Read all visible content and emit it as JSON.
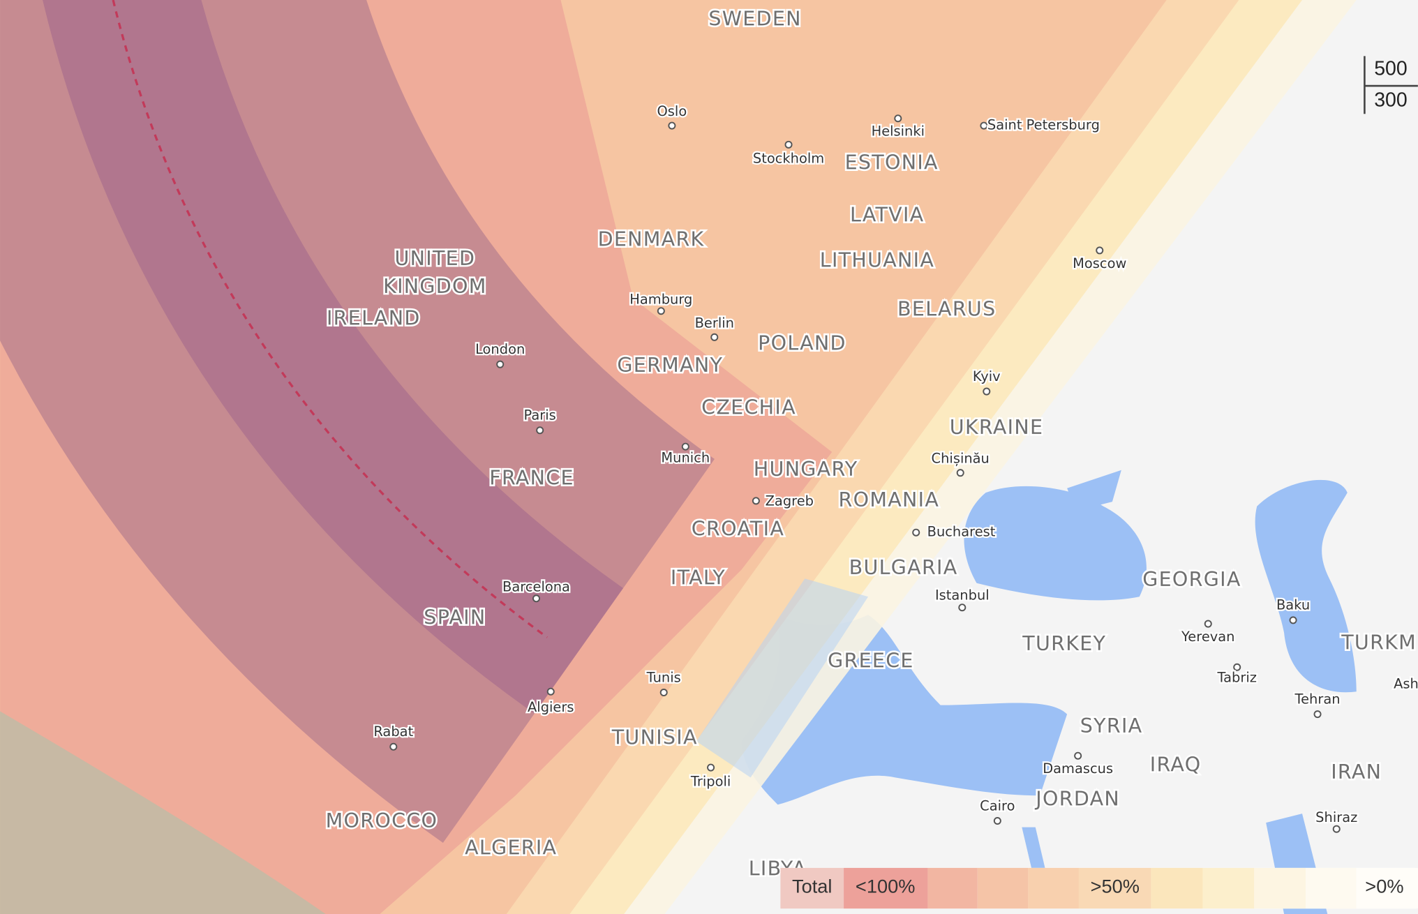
{
  "map": {
    "countries": [
      "SWEDEN",
      "UNITED",
      "KINGDOM",
      "IRELAND",
      "DENMARK",
      "ESTONIA",
      "LATVIA",
      "LITHUANIA",
      "BELARUS",
      "POLAND",
      "GERMANY",
      "CZECHIA",
      "UKRAINE",
      "HUNGARY",
      "ROMANIA",
      "FRANCE",
      "CROATIA",
      "ITALY",
      "BULGARIA",
      "GEORGIA",
      "SPAIN",
      "TURKEY",
      "GREECE",
      "TURKM",
      "TUNISIA",
      "SYRIA",
      "IRAQ",
      "IRAN",
      "JORDAN",
      "MOROCCO",
      "ALGERIA",
      "LIBYA"
    ],
    "cities": [
      "Oslo",
      "Helsinki",
      "Saint Petersburg",
      "Stockholm",
      "Moscow",
      "Hamburg",
      "Berlin",
      "London",
      "Kyiv",
      "Paris",
      "Munich",
      "Chișinău",
      "Zagreb",
      "Bucharest",
      "Barcelona",
      "Istanbul",
      "Baku",
      "Yerevan",
      "Tabriz",
      "Tunis",
      "Algiers",
      "Tehran",
      "Rabat",
      "Damascus",
      "Tripoli",
      "Cairo",
      "Shiraz",
      "Ash"
    ],
    "scale": [
      "500",
      "300"
    ],
    "legend": {
      "title": "Total",
      "labels": [
        "<100%",
        ">50%",
        ">0%"
      ]
    }
  }
}
